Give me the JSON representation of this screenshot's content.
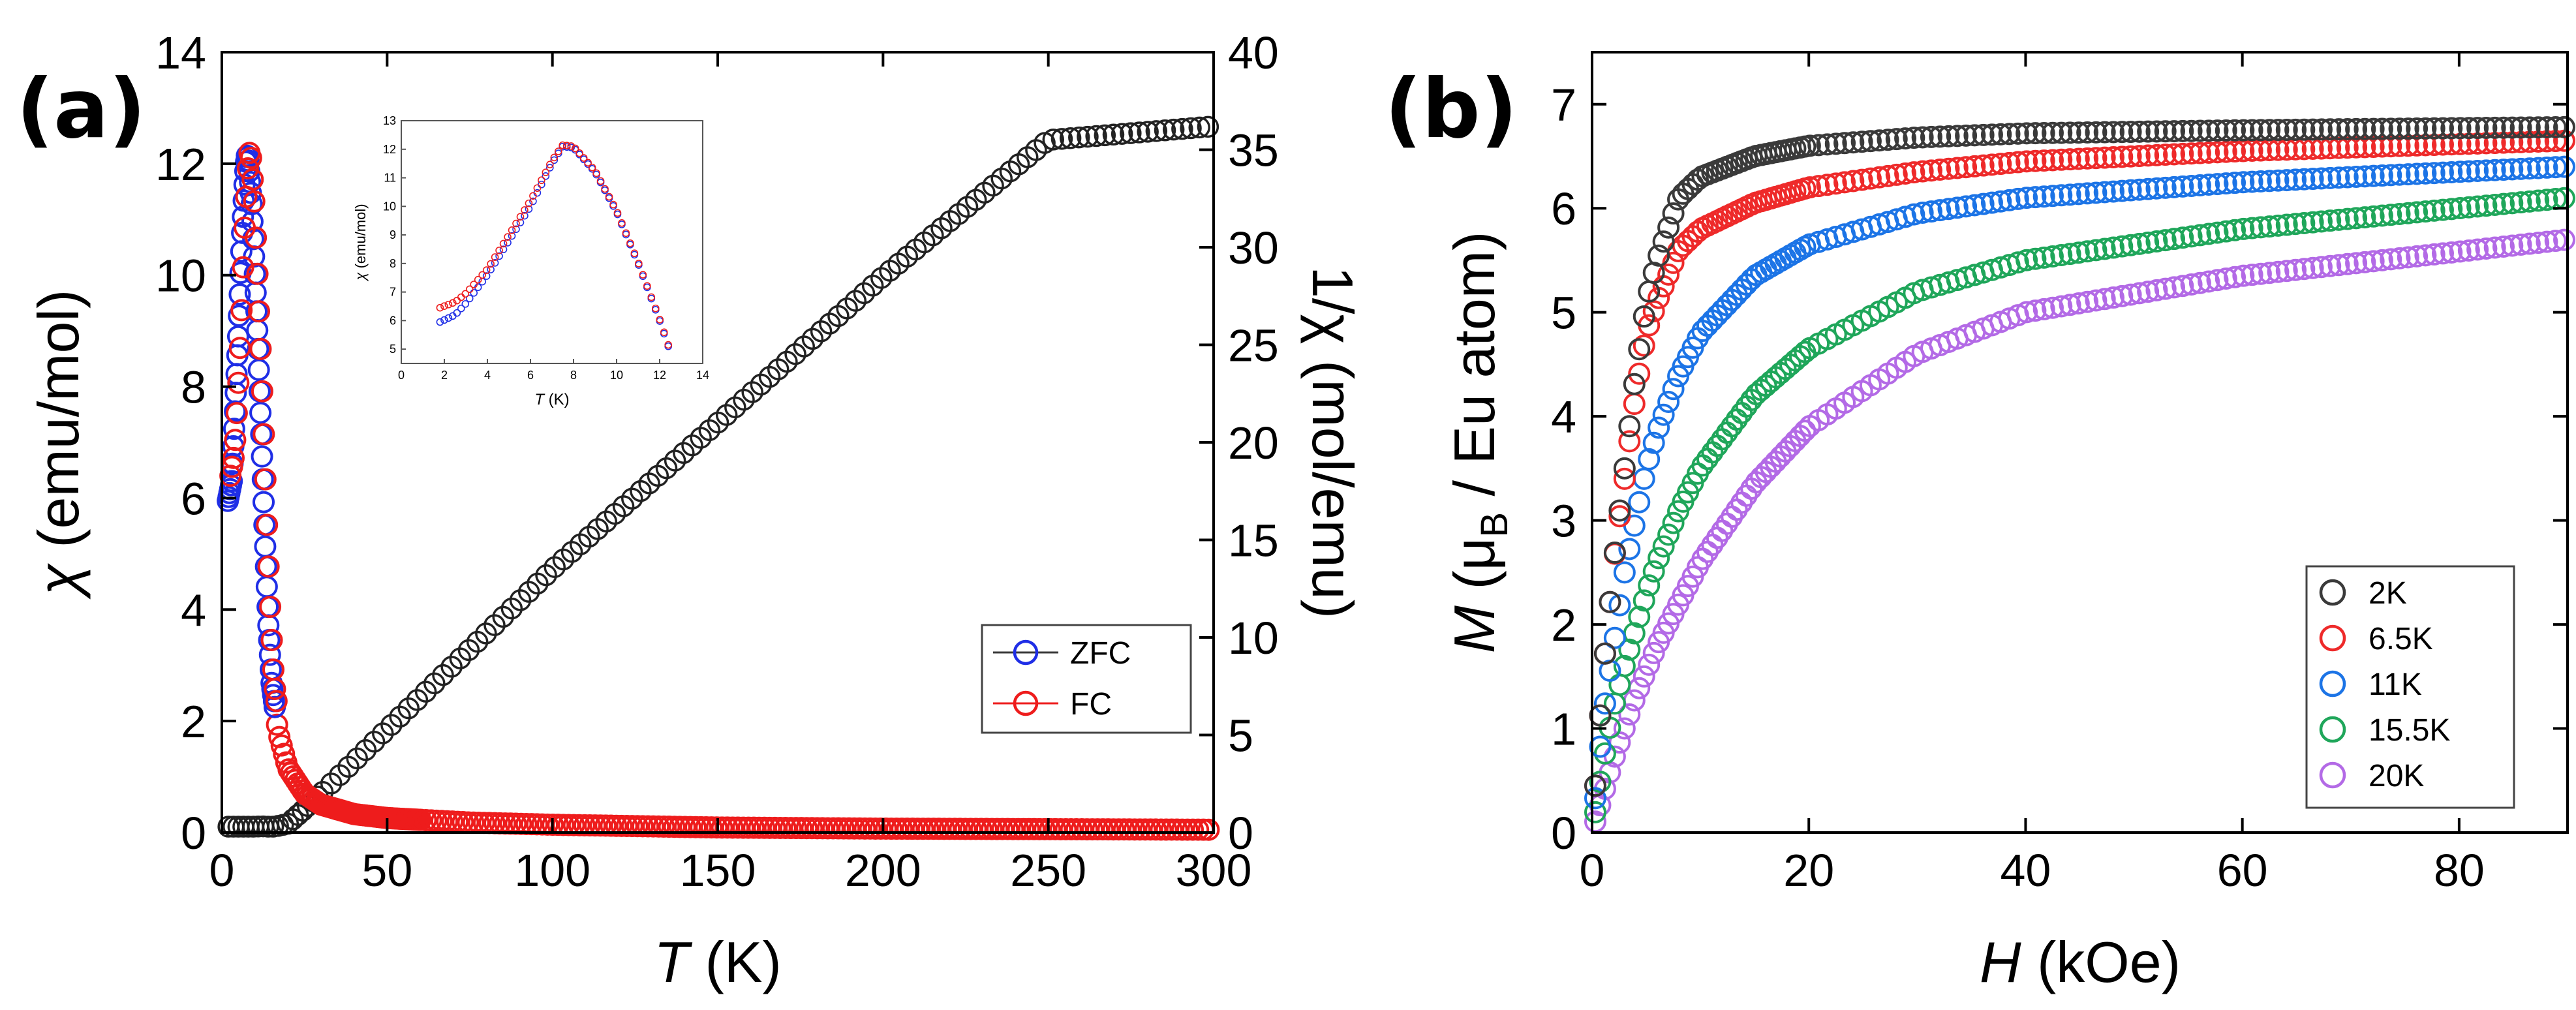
{
  "panel_a": {
    "label": "(a)",
    "xlabel_sym": "T",
    "xlabel_unit": " (K)",
    "ylabel_sym": "χ",
    "ylabel_unit": " (emu/mol)",
    "y2label_sym": "1/χ",
    "y2label_unit": " (mol/emu)",
    "legend": [
      "ZFC",
      "FC"
    ]
  },
  "panel_a_inset": {
    "ylabel_sym": "χ",
    "ylabel_unit": " (emu/mol)",
    "xlabel_sym": "T",
    "xlabel_unit": " (K)"
  },
  "panel_b": {
    "label": "(b)",
    "xlabel_sym": "H",
    "xlabel_unit": " (kOe)",
    "ylabel_sym": "M",
    "ylabel_open": " (μ",
    "ylabel_sub": "B",
    "ylabel_close": " / Eu atom)",
    "legend": [
      "2K",
      "6.5K",
      "11K",
      "15.5K",
      "20K"
    ]
  },
  "colors": {
    "zfc": "#1f2ee6",
    "fc": "#ee1c1c",
    "inv": "#222222",
    "b_2K": "#3a3a3a",
    "b_6.5K": "#ee2a2a",
    "b_11K": "#1c74e6",
    "b_15.5K": "#1fa65a",
    "b_20K": "#b36ae6"
  },
  "chart_data": [
    {
      "id": "a-main",
      "type": "scatter",
      "title": "",
      "xlabel": "T (K)",
      "ylabel": "χ (emu/mol)",
      "y2label": "1/χ (mol/emu)",
      "xlim": [
        0,
        300
      ],
      "ylim": [
        0,
        14
      ],
      "y2lim": [
        0,
        40
      ],
      "xticks": [
        0,
        50,
        100,
        150,
        200,
        250,
        300
      ],
      "yticks": [
        0,
        2,
        4,
        6,
        8,
        10,
        12,
        14
      ],
      "y2ticks": [
        0,
        5,
        10,
        15,
        20,
        25,
        30,
        35,
        40
      ],
      "legend_position": "right-middle",
      "series": [
        {
          "name": "ZFC",
          "axis": "left",
          "x": [
            1.8,
            3,
            4,
            5,
            6,
            7,
            7.5,
            8,
            9,
            10,
            11,
            12,
            13,
            14,
            15,
            17,
            20,
            25,
            30,
            40,
            50,
            75,
            100,
            150,
            200,
            250,
            300
          ],
          "y": [
            5.95,
            6.3,
            7.6,
            9.0,
            10.6,
            11.8,
            12.15,
            12.1,
            11.3,
            10.0,
            8.6,
            7.0,
            5.3,
            3.8,
            2.7,
            1.8,
            1.15,
            0.7,
            0.5,
            0.33,
            0.26,
            0.18,
            0.14,
            0.09,
            0.07,
            0.06,
            0.05
          ]
        },
        {
          "name": "FC",
          "axis": "left",
          "x": [
            1.8,
            3,
            4,
            5,
            6,
            7,
            7.5,
            8,
            9,
            10,
            11,
            12,
            13,
            14,
            15,
            17,
            20,
            25,
            30,
            40,
            50,
            75,
            100,
            150,
            200,
            250,
            300
          ],
          "y": [
            6.4,
            6.8,
            7.8,
            9.1,
            10.7,
            11.85,
            12.2,
            12.15,
            11.35,
            10.0,
            8.6,
            7.0,
            5.3,
            3.8,
            2.7,
            1.8,
            1.15,
            0.7,
            0.5,
            0.33,
            0.26,
            0.18,
            0.14,
            0.09,
            0.07,
            0.06,
            0.05
          ]
        },
        {
          "name": "1/χ",
          "axis": "right",
          "x": [
            2,
            5,
            8,
            10,
            12,
            14,
            16,
            20,
            25,
            30,
            50,
            100,
            150,
            200,
            250,
            300
          ],
          "y": [
            0.3,
            0.3,
            0.3,
            0.3,
            0.32,
            0.3,
            0.3,
            0.45,
            1.2,
            2.0,
            5.3,
            13.5,
            21.0,
            28.5,
            35.5,
            36.2
          ]
        }
      ]
    },
    {
      "id": "a-inset",
      "type": "scatter",
      "title": "",
      "xlabel": "T (K)",
      "ylabel": "χ (emu/mol)",
      "xlim": [
        0,
        14
      ],
      "ylim": [
        4.5,
        13
      ],
      "xticks": [
        0,
        2,
        4,
        6,
        8,
        10,
        12,
        14
      ],
      "yticks": [
        5,
        6,
        7,
        8,
        9,
        10,
        11,
        12,
        13
      ],
      "series": [
        {
          "name": "ZFC",
          "x": [
            1.8,
            2.5,
            3,
            4,
            5,
            6,
            7,
            7.5,
            8,
            9,
            10,
            11,
            12,
            12.4
          ],
          "y": [
            5.95,
            6.2,
            6.6,
            7.6,
            8.8,
            10.0,
            11.5,
            12.1,
            12.05,
            11.2,
            9.8,
            8.0,
            6.0,
            5.1
          ]
        },
        {
          "name": "FC",
          "x": [
            1.8,
            2.5,
            3,
            4,
            5,
            6,
            7,
            7.5,
            8,
            9,
            10,
            11,
            12,
            12.4
          ],
          "y": [
            6.45,
            6.65,
            6.95,
            7.8,
            9.0,
            10.2,
            11.6,
            12.15,
            12.1,
            11.25,
            9.85,
            8.05,
            6.05,
            5.15
          ]
        }
      ]
    },
    {
      "id": "b",
      "type": "scatter",
      "title": "",
      "xlabel": "H (kOe)",
      "ylabel": "M (μB / Eu atom)",
      "xlim": [
        0,
        90
      ],
      "ylim": [
        0,
        7.5
      ],
      "xticks": [
        0,
        20,
        40,
        60,
        80
      ],
      "yticks": [
        0,
        1,
        2,
        3,
        4,
        5,
        6,
        7
      ],
      "legend_position": "bottom-right",
      "series": [
        {
          "name": "2K",
          "x": [
            0,
            1,
            2,
            3,
            4,
            5,
            6,
            8,
            10,
            15,
            20,
            30,
            40,
            60,
            90
          ],
          "y": [
            0,
            1.5,
            2.6,
            3.5,
            4.4,
            5.1,
            5.5,
            6.1,
            6.3,
            6.5,
            6.6,
            6.68,
            6.72,
            6.75,
            6.78
          ]
        },
        {
          "name": "6.5K",
          "x": [
            0,
            1,
            2,
            3,
            4,
            5,
            6,
            8,
            10,
            15,
            20,
            30,
            40,
            60,
            90
          ],
          "y": [
            0,
            1.5,
            2.6,
            3.4,
            4.2,
            4.8,
            5.1,
            5.6,
            5.8,
            6.05,
            6.2,
            6.35,
            6.45,
            6.55,
            6.65
          ]
        },
        {
          "name": "11K",
          "x": [
            0,
            1,
            2,
            3,
            4,
            5,
            6,
            8,
            10,
            15,
            20,
            30,
            40,
            60,
            90
          ],
          "y": [
            0,
            1.1,
            1.8,
            2.5,
            3.0,
            3.5,
            3.85,
            4.4,
            4.8,
            5.35,
            5.65,
            5.95,
            6.1,
            6.25,
            6.4
          ]
        },
        {
          "name": "15.5K",
          "x": [
            0,
            1,
            2,
            3,
            4,
            5,
            6,
            8,
            10,
            15,
            20,
            30,
            40,
            60,
            90
          ],
          "y": [
            0,
            0.65,
            1.2,
            1.6,
            1.95,
            2.3,
            2.6,
            3.1,
            3.5,
            4.2,
            4.65,
            5.2,
            5.5,
            5.8,
            6.1
          ]
        },
        {
          "name": "20K",
          "x": [
            0,
            1,
            2,
            3,
            4,
            5,
            6,
            8,
            10,
            15,
            20,
            30,
            40,
            60,
            90
          ],
          "y": [
            0,
            0.35,
            0.7,
            1.0,
            1.3,
            1.55,
            1.8,
            2.2,
            2.6,
            3.35,
            3.9,
            4.6,
            5.0,
            5.35,
            5.7
          ]
        }
      ]
    }
  ]
}
